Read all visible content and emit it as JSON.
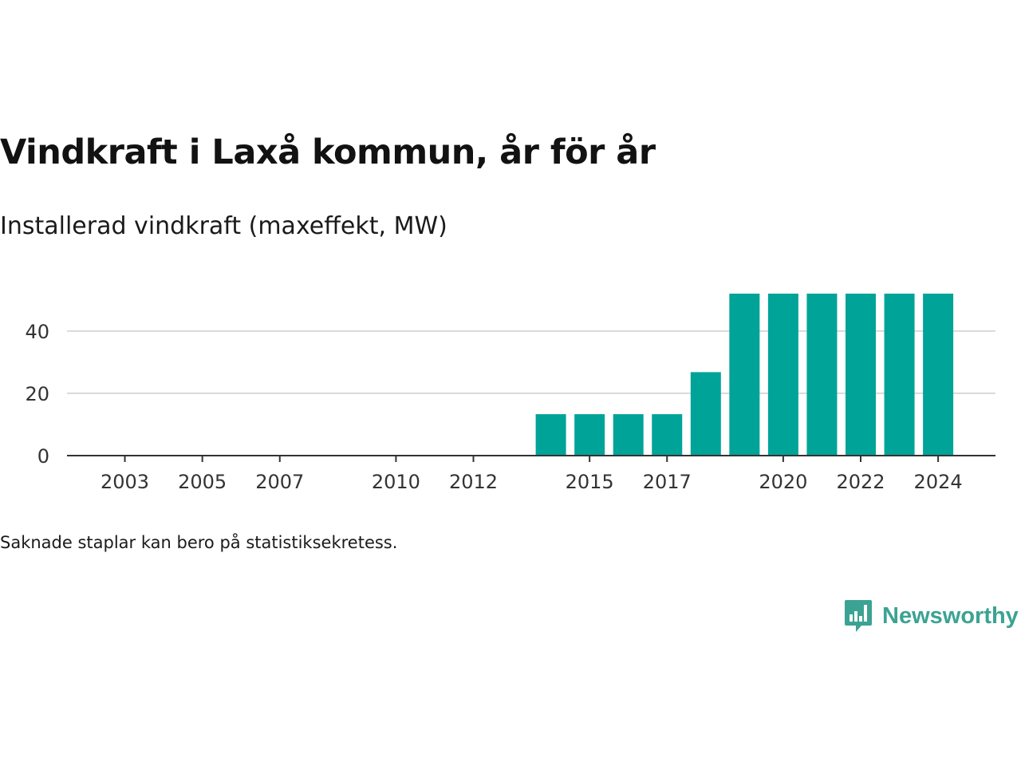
{
  "title": "Vindkraft i Laxå kommun, år för år",
  "subtitle": "Installerad vindkraft (maxeffekt, MW)",
  "footnote": "Saknade staplar kan bero på statistiksekretess.",
  "brand": {
    "name": "Newsworthy",
    "icon": "newsworthy-bar-chart-logo-icon",
    "color": "#3ba393"
  },
  "chart_data": {
    "type": "bar",
    "categories": [
      2002,
      2003,
      2004,
      2005,
      2006,
      2007,
      2008,
      2009,
      2010,
      2011,
      2012,
      2013,
      2014,
      2015,
      2016,
      2017,
      2018,
      2019,
      2020,
      2021,
      2022,
      2023,
      2024
    ],
    "values": [
      0,
      0,
      0,
      0,
      0,
      0,
      0,
      0,
      0,
      0,
      0,
      0,
      13.3,
      13.3,
      13.3,
      13.3,
      26.8,
      52,
      52,
      52,
      52,
      52,
      52
    ],
    "x_tick_labels": [
      "2003",
      "2005",
      "2007",
      "2010",
      "2012",
      "2015",
      "2017",
      "2020",
      "2022",
      "2024"
    ],
    "y_ticks": [
      0,
      20,
      40
    ],
    "ylim": [
      0,
      52
    ],
    "bar_color": "#00a398",
    "grid": true,
    "legend": false
  }
}
